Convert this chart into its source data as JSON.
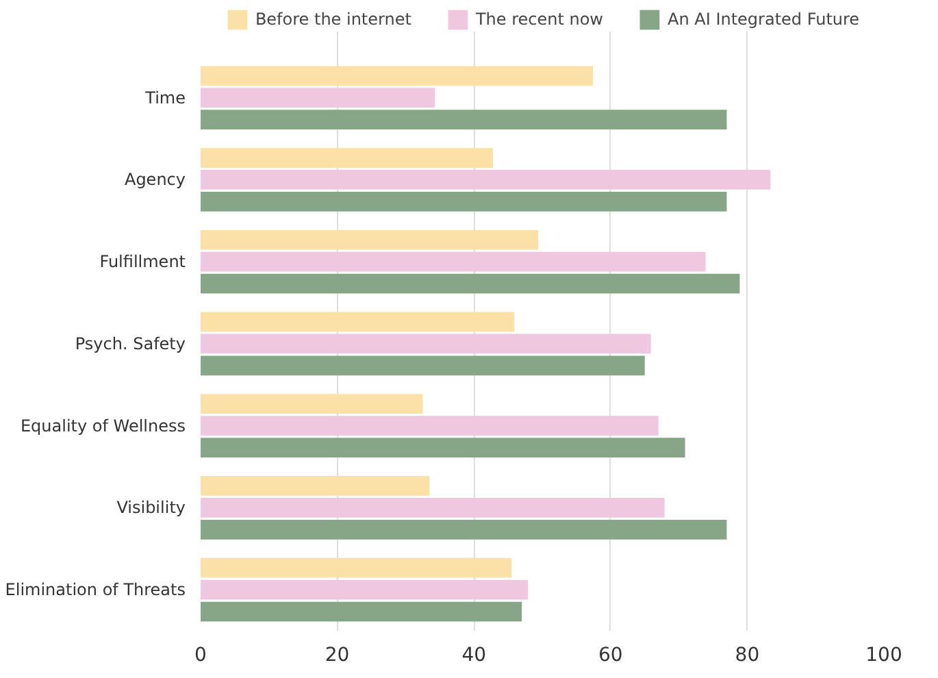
{
  "chart_data": {
    "type": "bar",
    "orientation": "horizontal",
    "categories": [
      "Time",
      "Agency",
      "Fulfillment",
      "Psych. Safety",
      "Equality of Wellness",
      "Visibility",
      "Elimination of Threats"
    ],
    "series": [
      {
        "name": "Before the internet",
        "color": "#fbe0a7",
        "values": [
          57.4,
          42.8,
          49.4,
          45.9,
          32.5,
          33.5,
          45.5
        ]
      },
      {
        "name": "The recent now",
        "color": "#efc8df",
        "values": [
          34.3,
          83.4,
          73.9,
          65.9,
          67.0,
          67.9,
          47.9
        ]
      },
      {
        "name": "An AI Integrated Future",
        "color": "#87a587",
        "values": [
          77.0,
          77.0,
          78.9,
          65.0,
          70.9,
          77.0,
          47.0
        ]
      }
    ],
    "xlim": [
      0,
      100
    ],
    "xticks": [
      0,
      20,
      40,
      60,
      80,
      100
    ],
    "grid": "x",
    "legend": "top"
  }
}
